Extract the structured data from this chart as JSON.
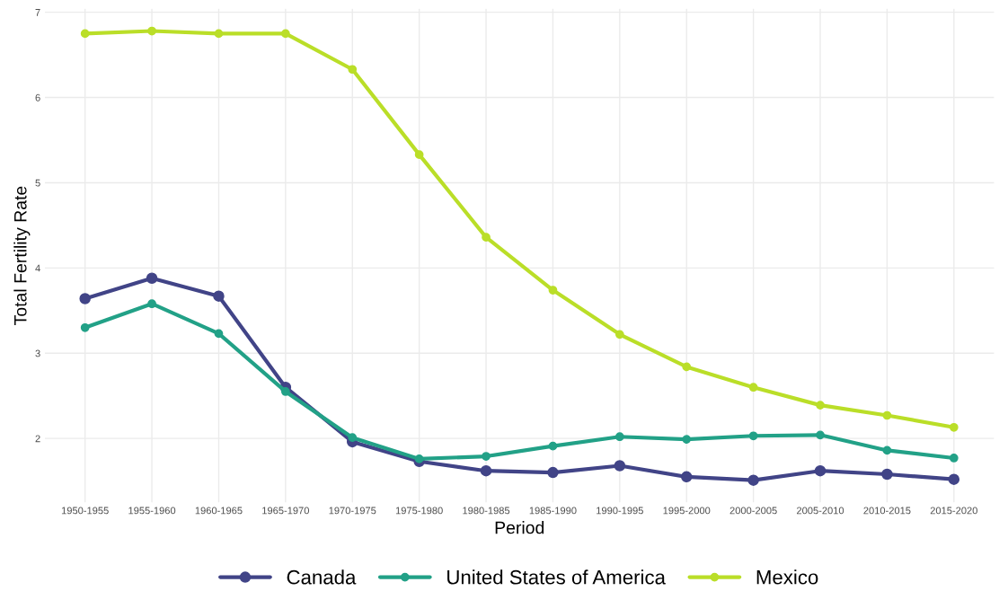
{
  "chart_data": {
    "type": "line",
    "xlabel": "Period",
    "ylabel": "Total Fertility Rate",
    "categories": [
      "1950-1955",
      "1955-1960",
      "1960-1965",
      "1965-1970",
      "1970-1975",
      "1975-1980",
      "1980-1985",
      "1985-1990",
      "1990-1995",
      "1995-2000",
      "2000-2005",
      "2005-2010",
      "2010-2015",
      "2015-2020"
    ],
    "series": [
      {
        "name": "Canada",
        "color": "#414487",
        "values": [
          3.64,
          3.88,
          3.67,
          2.6,
          1.96,
          1.73,
          1.62,
          1.6,
          1.68,
          1.55,
          1.51,
          1.62,
          1.58,
          1.52
        ]
      },
      {
        "name": "United States of America",
        "color": "#22a187",
        "values": [
          3.3,
          3.58,
          3.23,
          2.55,
          2.01,
          1.76,
          1.79,
          1.91,
          2.02,
          1.99,
          2.03,
          2.04,
          1.86,
          1.77
        ]
      },
      {
        "name": "Mexico",
        "color": "#bade28",
        "values": [
          6.75,
          6.78,
          6.75,
          6.75,
          6.33,
          5.33,
          4.36,
          3.74,
          3.22,
          2.84,
          2.6,
          2.39,
          2.27,
          2.13
        ]
      }
    ],
    "ylim": [
      1.25,
      7.04
    ],
    "yticks": [
      2,
      3,
      4,
      5,
      6,
      7
    ],
    "grid": true,
    "legend": "bottom",
    "marker": "circle",
    "line_style": "solid"
  }
}
